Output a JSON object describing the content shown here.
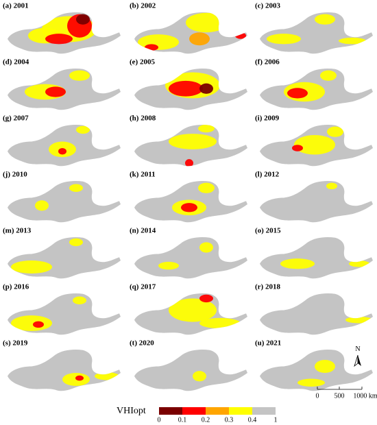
{
  "panels": [
    "(a) 2001",
    "(b) 2002",
    "(c) 2003",
    "(d) 2004",
    "(e) 2005",
    "(f) 2006",
    "(g) 2007",
    "(h) 2008",
    "(i) 2009",
    "(j) 2010",
    "(k) 2011",
    "(l) 2012",
    "(m) 2013",
    "(n) 2014",
    "(o) 2015",
    "(p) 2016",
    "(q) 2017",
    "(r) 2018",
    "(s) 2019",
    "(t) 2020",
    "(u) 2021"
  ],
  "legend": {
    "title": "VHIopt",
    "bounds": [
      0,
      0.1,
      0.2,
      0.3,
      0.4,
      1
    ],
    "colors": [
      "#7a0000",
      "#ff0000",
      "#ffa500",
      "#ffff00",
      "#c4c4c4"
    ]
  },
  "north": "N",
  "scale_bar": {
    "labels": [
      "0",
      "500",
      "1000 km"
    ]
  }
}
